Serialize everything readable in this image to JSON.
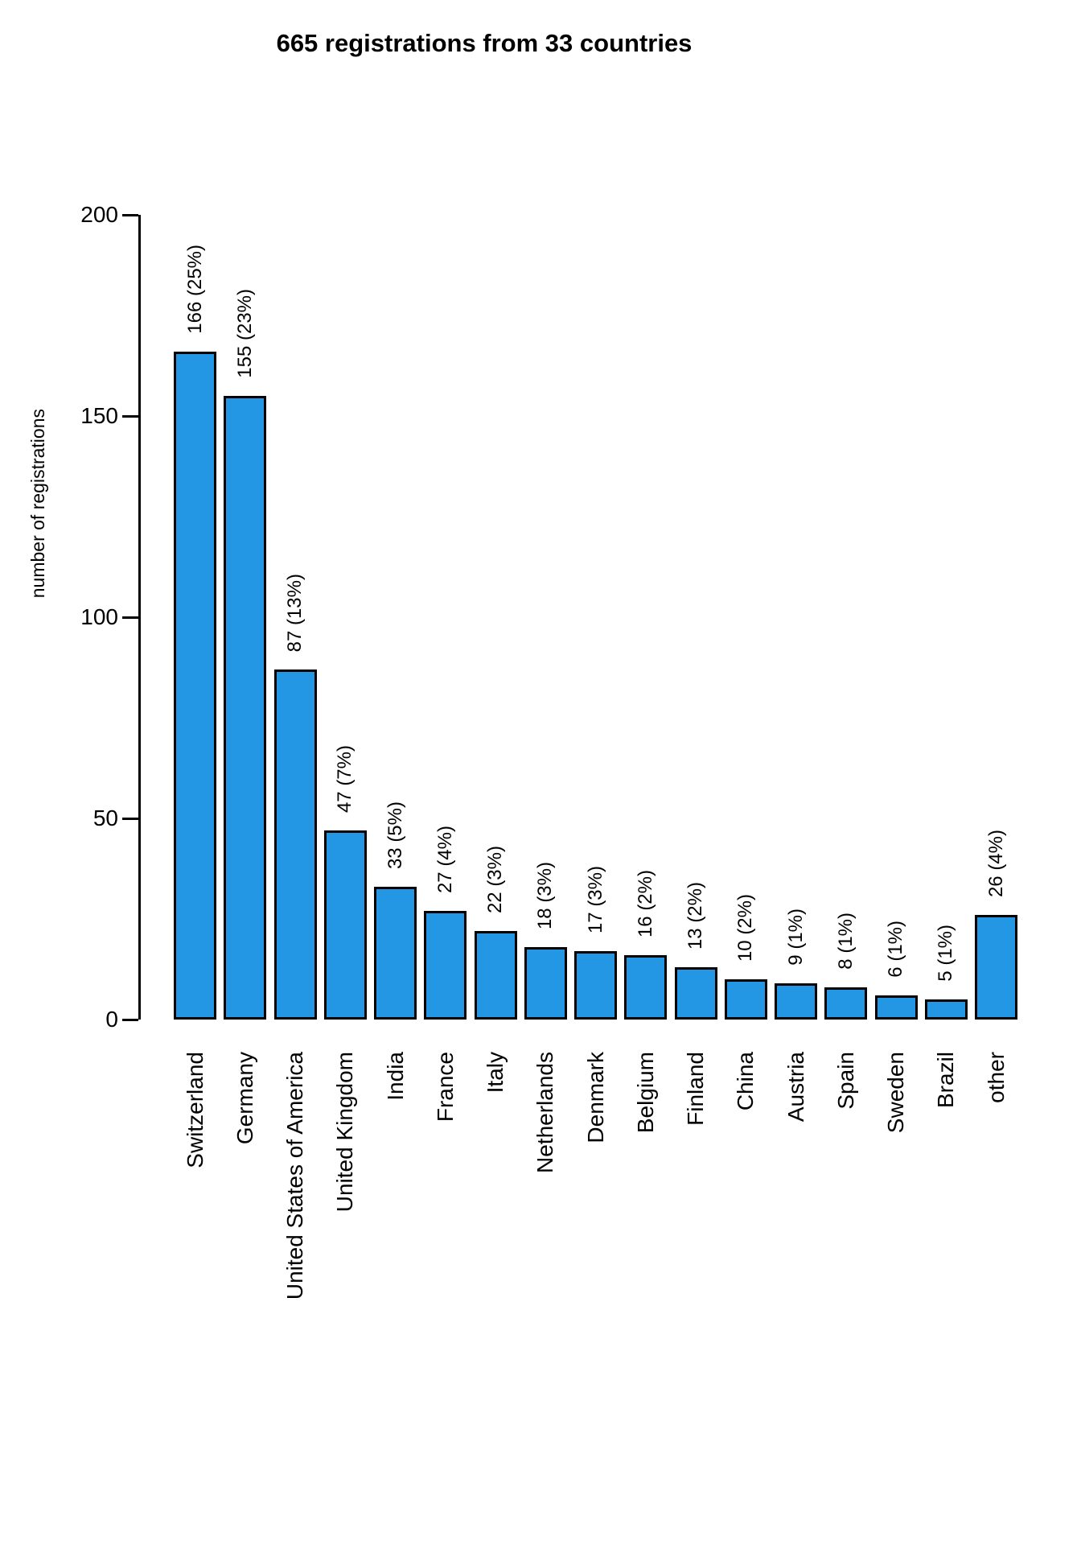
{
  "title": "665 registrations from 33 countries",
  "chart_data": {
    "type": "bar",
    "title": "665 registrations from 33 countries",
    "xlabel": "",
    "ylabel": "number of registrations",
    "ylim": [
      0,
      200
    ],
    "yticks": [
      0,
      50,
      100,
      150,
      200
    ],
    "grid": false,
    "legend": "none",
    "orientation": "vertical",
    "bar_color": "#2397E4",
    "bar_border_color": "#000000",
    "categories": [
      "Switzerland",
      "Germany",
      "United States of America",
      "United Kingdom",
      "India",
      "France",
      "Italy",
      "Netherlands",
      "Denmark",
      "Belgium",
      "Finland",
      "China",
      "Austria",
      "Spain",
      "Sweden",
      "Brazil",
      "other"
    ],
    "values": [
      166,
      155,
      87,
      47,
      33,
      27,
      22,
      18,
      17,
      16,
      13,
      10,
      9,
      8,
      6,
      5,
      26
    ],
    "value_labels": [
      "166 (25%)",
      "155 (23%)",
      "87 (13%)",
      "47 (7%)",
      "33 (5%)",
      "27 (4%)",
      "22 (3%)",
      "18 (3%)",
      "17 (3%)",
      "16 (2%)",
      "13 (2%)",
      "10 (2%)",
      "9 (1%)",
      "8 (1%)",
      "6 (1%)",
      "5 (1%)",
      "26 (4%)"
    ],
    "total_registrations": 665,
    "total_countries": 33
  }
}
